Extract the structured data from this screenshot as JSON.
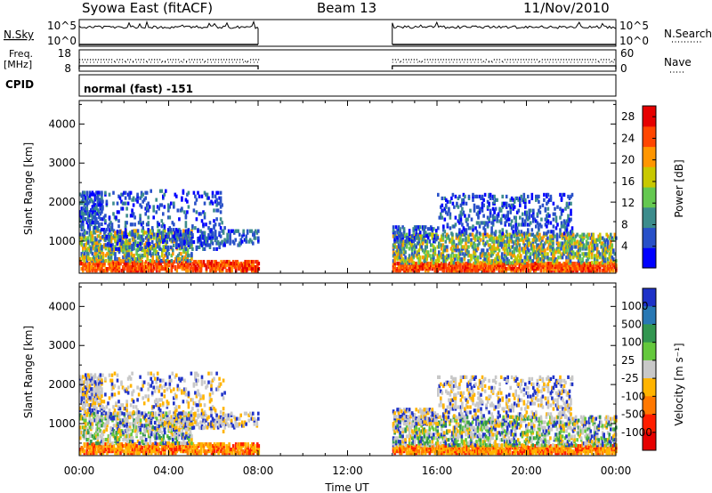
{
  "header": {
    "station": "Syowa East (fitACF)",
    "beam": "Beam 13",
    "date": "11/Nov/2010"
  },
  "panels": {
    "nsky_label": "N.Sky",
    "nsearch_label": "N.Search",
    "nsky_ticks": [
      "10^5",
      "10^0"
    ],
    "nsearch_ticks": [
      "10^5",
      "10^0"
    ],
    "freq_label_line1": "Freq.",
    "freq_label_line2": "[MHz]",
    "freq_ticks": [
      "18",
      "8"
    ],
    "nave_label": "Nave",
    "nave_ticks": [
      "60",
      "0"
    ],
    "cpid_label": "CPID",
    "cpid_value": "normal (fast) -151"
  },
  "chart_data": [
    {
      "type": "heatmap",
      "name": "power",
      "xlabel": "Time UT",
      "ylabel": "Slant Range [km]",
      "x_ticks": [
        "00:00",
        "04:00",
        "08:00",
        "12:00",
        "16:00",
        "20:00",
        "00:00"
      ],
      "xlim_hours": [
        0,
        24
      ],
      "y_ticks": [
        1000,
        2000,
        3000,
        4000
      ],
      "ylim": [
        180,
        4600
      ],
      "data_gap_hours": [
        8,
        14
      ],
      "colorbar_label": "Power [dB]",
      "colorbar_ticks": [
        4,
        8,
        12,
        16,
        20,
        24,
        28
      ],
      "colorbar_range": [
        0,
        30
      ],
      "colorbar_colors": [
        "#0000ff",
        "#2850c8",
        "#3c8c8c",
        "#64c850",
        "#c8c800",
        "#ff9600",
        "#ff4600",
        "#e60000"
      ]
    },
    {
      "type": "heatmap",
      "name": "velocity",
      "xlabel": "Time UT",
      "ylabel": "Slant Range [km]",
      "x_ticks": [
        "00:00",
        "04:00",
        "08:00",
        "12:00",
        "16:00",
        "20:00",
        "00:00"
      ],
      "xlim_hours": [
        0,
        24
      ],
      "y_ticks": [
        1000,
        2000,
        3000,
        4000
      ],
      "ylim": [
        180,
        4600
      ],
      "data_gap_hours": [
        8,
        14
      ],
      "colorbar_label": "Velocity [m s⁻¹]",
      "colorbar_ticks": [
        "1000",
        "500",
        "100",
        "25",
        "-25",
        "-100",
        "-500",
        "-1000"
      ],
      "colorbar_colors": [
        "#1e32c8",
        "#2878b4",
        "#329650",
        "#64c83c",
        "#c8c8c8",
        "#ffb400",
        "#ff7800",
        "#ff1e00",
        "#e60000"
      ]
    }
  ]
}
